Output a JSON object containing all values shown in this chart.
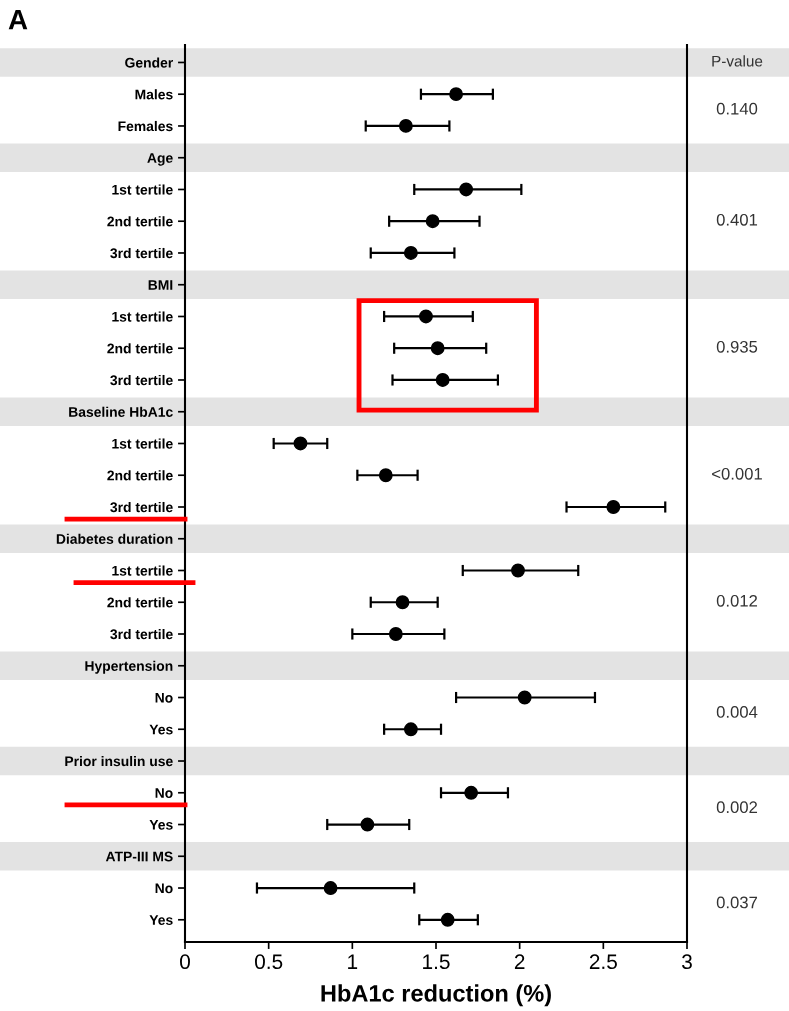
{
  "chart_data": {
    "type": "scatter",
    "title": "A",
    "xlabel": "HbA1c reduction (%)",
    "orientation": "horizontal",
    "categories": [
      "Gender",
      "Males",
      "Females",
      "Age",
      "1st tertile",
      "2nd tertile",
      "3rd tertile",
      "BMI",
      "1st tertile",
      "2nd tertile",
      "3rd tertile",
      "Baseline HbA1c",
      "1st tertile",
      "2nd tertile",
      "3rd tertile",
      "Diabetes duration",
      "1st tertile",
      "2nd tertile",
      "3rd tertile",
      "Hypertension",
      "No",
      "Yes",
      "Prior insulin use",
      "No",
      "Yes",
      "ATP-III MS",
      "No",
      "Yes"
    ],
    "series": [
      {
        "color": "#000000",
        "values": [
          null,
          1.62,
          1.32,
          null,
          1.68,
          1.48,
          1.35,
          null,
          1.44,
          1.51,
          1.54,
          null,
          0.69,
          1.2,
          2.56,
          null,
          1.99,
          1.3,
          1.26,
          null,
          2.03,
          1.35,
          null,
          1.71,
          1.09,
          null,
          0.87,
          1.57
        ],
        "errors": [
          null,
          [
            1.41,
            1.84
          ],
          [
            1.08,
            1.58
          ],
          null,
          [
            1.37,
            2.01
          ],
          [
            1.22,
            1.76
          ],
          [
            1.11,
            1.61
          ],
          null,
          [
            1.19,
            1.72
          ],
          [
            1.25,
            1.8
          ],
          [
            1.24,
            1.87
          ],
          null,
          [
            0.53,
            0.85
          ],
          [
            1.03,
            1.39
          ],
          [
            2.28,
            2.87
          ],
          null,
          [
            1.66,
            2.35
          ],
          [
            1.11,
            1.51
          ],
          [
            1.0,
            1.55
          ],
          null,
          [
            1.62,
            2.45
          ],
          [
            1.19,
            1.53
          ],
          null,
          [
            1.53,
            1.93
          ],
          [
            0.85,
            1.34
          ],
          null,
          [
            0.43,
            1.37
          ],
          [
            1.4,
            1.75
          ]
        ]
      }
    ],
    "xlim": [
      0,
      3
    ],
    "xticks": [
      0,
      0.5,
      1,
      1.5,
      2,
      2.5,
      3
    ],
    "marker": "circle",
    "grid": false,
    "annotations": [
      "P-value",
      "0.140",
      "0.401",
      "0.935",
      "<0.001",
      "0.012",
      "0.004",
      "0.002",
      "0.037"
    ]
  }
}
